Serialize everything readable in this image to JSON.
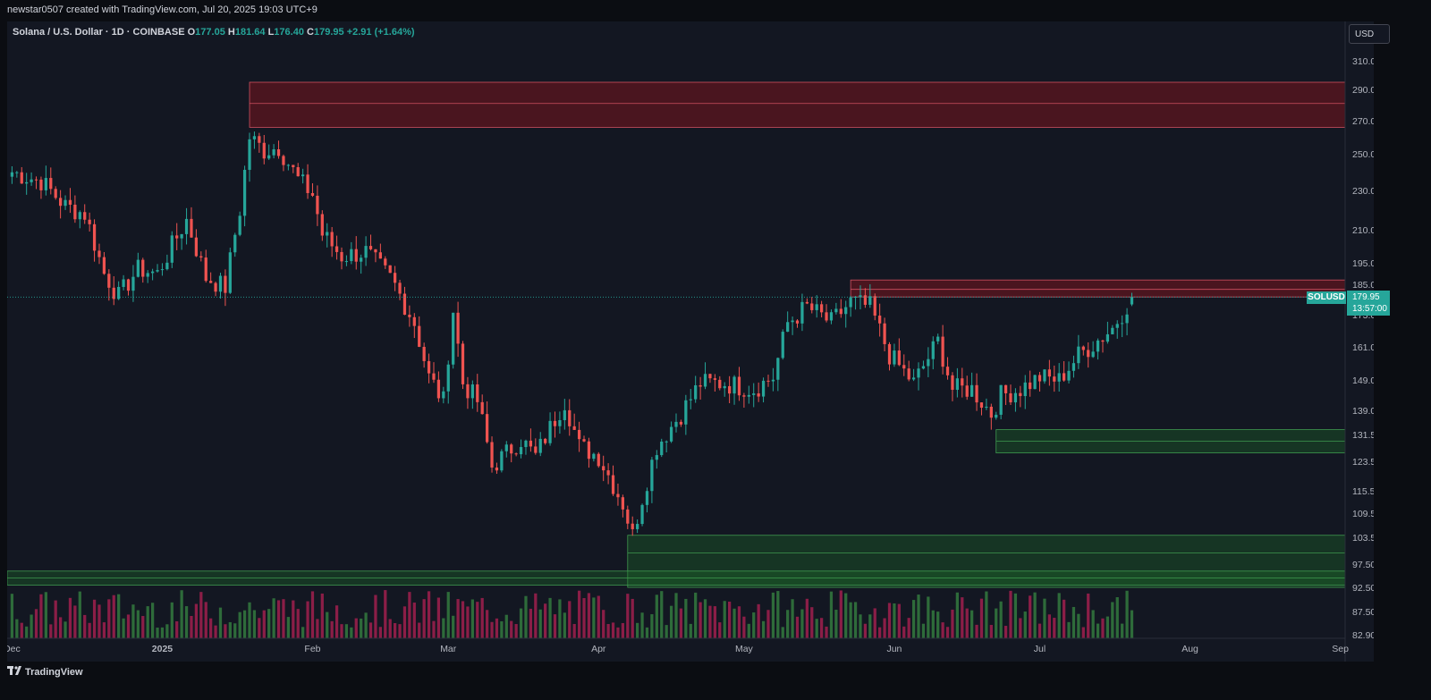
{
  "header": {
    "credit": "newstar0507 created with TradingView.com, Jul 20, 2025 19:03 UTC+9"
  },
  "legend": {
    "symbol": "Solana / U.S. Dollar · 1D · COINBASE",
    "o_label": "O",
    "o": "177.05",
    "h_label": "H",
    "h": "181.64",
    "l_label": "L",
    "l": "176.40",
    "c_label": "C",
    "c": "179.95",
    "change": "+2.91 (+1.64%)"
  },
  "price_scale": {
    "currency": "USD",
    "ticks": [
      "310.00",
      "290.00",
      "270.00",
      "250.00",
      "230.00",
      "210.00",
      "195.00",
      "185.00",
      "173.00",
      "161.00",
      "149.00",
      "139.00",
      "131.50",
      "123.50",
      "115.50",
      "109.50",
      "103.50",
      "97.50",
      "92.50",
      "87.50",
      "82.90"
    ]
  },
  "last_price": {
    "symbol": "SOLUSD",
    "price": "179.95",
    "countdown": "13:57:00"
  },
  "time_scale": {
    "labels": [
      "Dec",
      "2025",
      "Feb",
      "Mar",
      "Apr",
      "May",
      "Jun",
      "Jul",
      "Aug",
      "Sep"
    ]
  },
  "footer": {
    "brand": "TradingView"
  },
  "colors": {
    "up": "#26a69a",
    "down": "#ef5350",
    "vol_up": "#2e6b3a",
    "vol_down": "#8b1e47",
    "resistance_zone": "#4a1820",
    "support_zone": "#163a1f",
    "background": "#131722"
  },
  "chart_data": {
    "type": "candlestick",
    "instrument": "SOLUSD",
    "interval": "1D",
    "y_range": [
      82.9,
      310
    ],
    "x_range": [
      "2024-11-30",
      "2025-09-02"
    ],
    "zones": [
      {
        "kind": "resistance",
        "from_date": "2025-01-19",
        "low": 266,
        "high": 295,
        "midline": 281
      },
      {
        "kind": "resistance",
        "from_date": "2025-05-23",
        "low": 180,
        "high": 187,
        "midline": 183
      },
      {
        "kind": "support",
        "from_date": "2025-06-22",
        "low": 126,
        "high": 133,
        "midline": 129.5
      },
      {
        "kind": "support",
        "from_date": "2025-04-07",
        "low": 92.5,
        "high": 104,
        "midline": 100
      },
      {
        "kind": "support",
        "from_date": "2024-11-30",
        "low": 93,
        "high": 96,
        "midline": 94.5
      }
    ],
    "anchors": [
      [
        "2024-12-01",
        240
      ],
      [
        "2024-12-07",
        235
      ],
      [
        "2024-12-12",
        222
      ],
      [
        "2024-12-16",
        218
      ],
      [
        "2024-12-20",
        190
      ],
      [
        "2024-12-23",
        180
      ],
      [
        "2024-12-27",
        192
      ],
      [
        "2024-12-31",
        190
      ],
      [
        "2025-01-06",
        215
      ],
      [
        "2025-01-10",
        188
      ],
      [
        "2025-01-14",
        184
      ],
      [
        "2025-01-17",
        220
      ],
      [
        "2025-01-19",
        260
      ],
      [
        "2025-01-22",
        252
      ],
      [
        "2025-01-25",
        254
      ],
      [
        "2025-01-29",
        236
      ],
      [
        "2025-02-01",
        228
      ],
      [
        "2025-02-03",
        208
      ],
      [
        "2025-02-07",
        198
      ],
      [
        "2025-02-12",
        200
      ],
      [
        "2025-02-17",
        188
      ],
      [
        "2025-02-22",
        170
      ],
      [
        "2025-02-25",
        150
      ],
      [
        "2025-02-28",
        142
      ],
      [
        "2025-03-02",
        175
      ],
      [
        "2025-03-04",
        148
      ],
      [
        "2025-03-07",
        142
      ],
      [
        "2025-03-10",
        122
      ],
      [
        "2025-03-16",
        130
      ],
      [
        "2025-03-19",
        125
      ],
      [
        "2025-03-25",
        142
      ],
      [
        "2025-03-28",
        128
      ],
      [
        "2025-04-01",
        125
      ],
      [
        "2025-04-06",
        112
      ],
      [
        "2025-04-08",
        104
      ],
      [
        "2025-04-13",
        128
      ],
      [
        "2025-04-18",
        138
      ],
      [
        "2025-04-22",
        148
      ],
      [
        "2025-04-27",
        148
      ],
      [
        "2025-05-03",
        146
      ],
      [
        "2025-05-07",
        150
      ],
      [
        "2025-05-10",
        170
      ],
      [
        "2025-05-14",
        176
      ],
      [
        "2025-05-19",
        170
      ],
      [
        "2025-05-23",
        178
      ],
      [
        "2025-05-27",
        176
      ],
      [
        "2025-05-31",
        158
      ],
      [
        "2025-06-05",
        148
      ],
      [
        "2025-06-10",
        163
      ],
      [
        "2025-06-13",
        146
      ],
      [
        "2025-06-17",
        146
      ],
      [
        "2025-06-21",
        138
      ],
      [
        "2025-06-23",
        144
      ],
      [
        "2025-06-27",
        146
      ],
      [
        "2025-07-01",
        150
      ],
      [
        "2025-07-05",
        149
      ],
      [
        "2025-07-09",
        158
      ],
      [
        "2025-07-12",
        162
      ],
      [
        "2025-07-16",
        168
      ],
      [
        "2025-07-20",
        179.95
      ]
    ],
    "last_candle": {
      "date": "2025-07-20",
      "open": 177.05,
      "high": 181.64,
      "low": 176.4,
      "close": 179.95
    }
  }
}
